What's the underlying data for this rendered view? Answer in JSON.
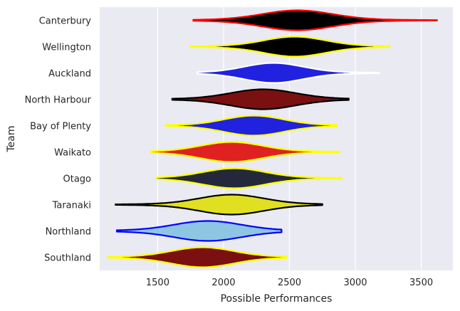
{
  "chart_data": {
    "type": "violin",
    "orientation": "horizontal",
    "title": "",
    "xlabel": "Possible Performances",
    "ylabel": "Team",
    "xlim": [
      1060,
      3740
    ],
    "xticks": [
      1500,
      2000,
      2500,
      3000,
      3500
    ],
    "grid": true,
    "background": "#eaeaf2",
    "teams": [
      {
        "name": "Canterbury",
        "fill": "#000000",
        "edge": "#ff0000",
        "min": 1770,
        "max": 3620,
        "peak": 2560,
        "spread": 260
      },
      {
        "name": "Wellington",
        "fill": "#000000",
        "edge": "#ffff00",
        "min": 1750,
        "max": 3260,
        "peak": 2540,
        "spread": 230
      },
      {
        "name": "Auckland",
        "fill": "#2121e0",
        "edge": "#ffffff",
        "min": 1800,
        "max": 3180,
        "peak": 2380,
        "spread": 220
      },
      {
        "name": "North Harbour",
        "fill": "#7a1010",
        "edge": "#000000",
        "min": 1610,
        "max": 2950,
        "peak": 2300,
        "spread": 240
      },
      {
        "name": "Bay of Plenty",
        "fill": "#2121e0",
        "edge": "#ffff00",
        "min": 1560,
        "max": 2860,
        "peak": 2230,
        "spread": 220
      },
      {
        "name": "Waikato",
        "fill": "#e02121",
        "edge": "#ffff00",
        "min": 1450,
        "max": 2880,
        "peak": 2060,
        "spread": 230
      },
      {
        "name": "Otago",
        "fill": "#23293a",
        "edge": "#ffff00",
        "min": 1490,
        "max": 2900,
        "peak": 2080,
        "spread": 230
      },
      {
        "name": "Taranaki",
        "fill": "#e0e021",
        "edge": "#000000",
        "min": 1180,
        "max": 2750,
        "peak": 2060,
        "spread": 240
      },
      {
        "name": "Northland",
        "fill": "#8ec5e2",
        "edge": "#0000ff",
        "min": 1190,
        "max": 2440,
        "peak": 1880,
        "spread": 250
      },
      {
        "name": "Southland",
        "fill": "#7a1010",
        "edge": "#ffff00",
        "min": 1120,
        "max": 2480,
        "peak": 1840,
        "spread": 230
      }
    ]
  }
}
